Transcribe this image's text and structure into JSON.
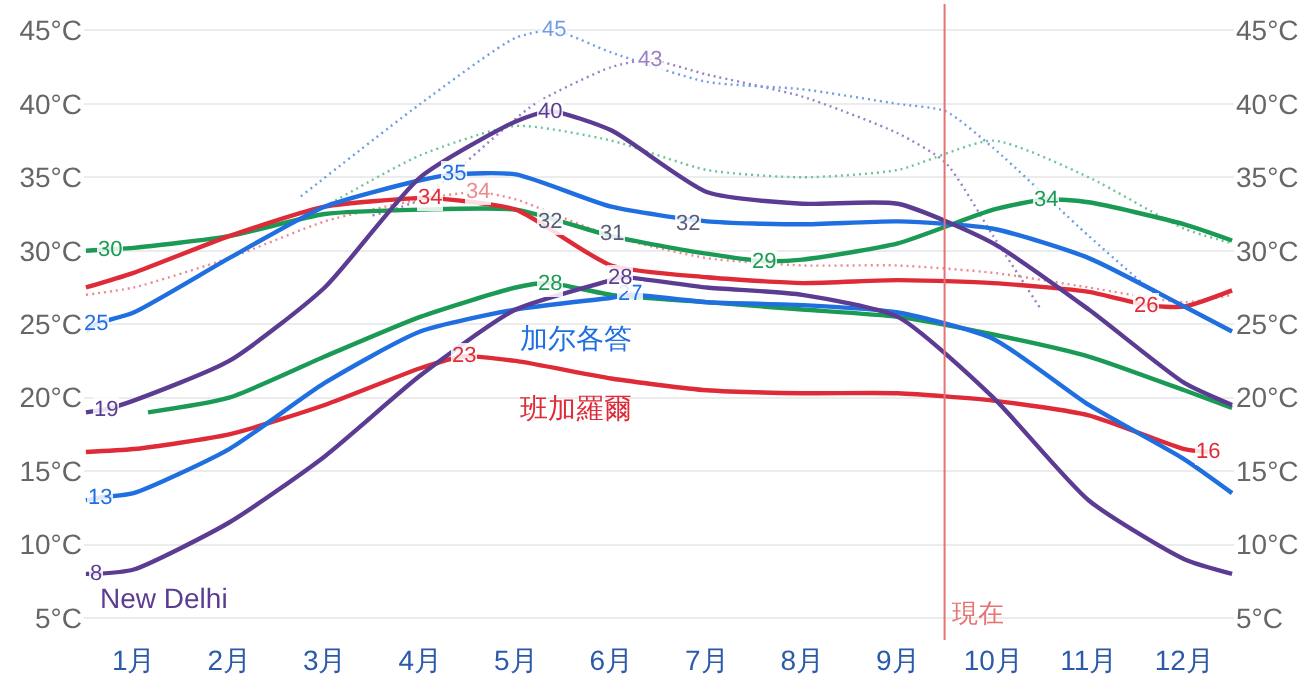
{
  "chart_data": {
    "type": "line",
    "xlim": [
      0.48,
      12.52
    ],
    "xticks": [
      {
        "value": 1,
        "label": "1月"
      },
      {
        "value": 2,
        "label": "2月"
      },
      {
        "value": 3,
        "label": "3月"
      },
      {
        "value": 4,
        "label": "4月"
      },
      {
        "value": 5,
        "label": "5月"
      },
      {
        "value": 6,
        "label": "6月"
      },
      {
        "value": 7,
        "label": "7月"
      },
      {
        "value": 8,
        "label": "8月"
      },
      {
        "value": 9,
        "label": "9月"
      },
      {
        "value": 10,
        "label": "10月"
      },
      {
        "value": 11,
        "label": "11月"
      },
      {
        "value": 12,
        "label": "12月"
      }
    ],
    "ylim": [
      3.5,
      46.8
    ],
    "yticks": [
      {
        "value": 5,
        "label": "5°C"
      },
      {
        "value": 10,
        "label": "10°C"
      },
      {
        "value": 15,
        "label": "15°C"
      },
      {
        "value": 20,
        "label": "20°C"
      },
      {
        "value": 25,
        "label": "25°C"
      },
      {
        "value": 30,
        "label": "30°C"
      },
      {
        "value": 35,
        "label": "35°C"
      },
      {
        "value": 40,
        "label": "40°C"
      },
      {
        "value": 45,
        "label": "45°C"
      }
    ],
    "y2lim": [
      3.5,
      46.8
    ],
    "y2ticks": [
      {
        "value": 5,
        "label": "5°C"
      },
      {
        "value": 10,
        "label": "10°C"
      },
      {
        "value": 15,
        "label": "15°C"
      },
      {
        "value": 20,
        "label": "20°C"
      },
      {
        "value": 25,
        "label": "25°C"
      },
      {
        "value": 30,
        "label": "30°C"
      },
      {
        "value": 35,
        "label": "35°C"
      },
      {
        "value": 40,
        "label": "40°C"
      },
      {
        "value": 45,
        "label": "45°C"
      }
    ],
    "grid": "y",
    "marker": "none",
    "series": [
      {
        "color": "#9b7fc4",
        "line_style": "dotted",
        "x": [
          3.5,
          4,
          5.2,
          6,
          6.4,
          7,
          8,
          9,
          9.5,
          10,
          10.5
        ],
        "values": [
          32.4,
          33.5,
          40,
          42.5,
          43,
          42,
          40.5,
          38,
          36,
          31,
          26
        ],
        "value_labels": [
          null,
          null,
          null,
          null,
          "43",
          null,
          null,
          null,
          null,
          null,
          null
        ]
      },
      {
        "color": "#6f9de6",
        "line_style": "dotted",
        "x": [
          2.75,
          4,
          5,
          5.4,
          6,
          7,
          8,
          9,
          9.5,
          10,
          11,
          11.7
        ],
        "values": [
          33.7,
          40,
          44.5,
          45,
          43.5,
          41.5,
          41,
          40,
          39.5,
          37,
          31,
          27
        ],
        "value_labels": [
          null,
          null,
          null,
          "45",
          null,
          null,
          null,
          null,
          null,
          null,
          null,
          null
        ]
      },
      {
        "color": "#6cc495",
        "line_style": "dotted",
        "x": [
          3,
          4,
          5,
          6,
          7,
          8,
          9,
          10,
          11,
          12,
          12.5
        ],
        "values": [
          33,
          36.5,
          38.5,
          37.5,
          35.5,
          35,
          35.5,
          37.5,
          35,
          31.5,
          30.5
        ]
      },
      {
        "color": "#ec8a90",
        "line_style": "dotted",
        "x": [
          0.5,
          1,
          2,
          3,
          4,
          4.6,
          5,
          6,
          7,
          8,
          9,
          10,
          11,
          12,
          12.5
        ],
        "values": [
          27,
          27.5,
          29.5,
          32,
          33.5,
          34,
          33.5,
          31,
          29.5,
          29,
          29,
          28.5,
          27.5,
          26.5,
          27
        ],
        "value_labels": [
          null,
          null,
          null,
          null,
          null,
          "34",
          null,
          null,
          null,
          null,
          null,
          null,
          null,
          null,
          null
        ]
      },
      {
        "color": "#1a9a55",
        "line_style": "solid",
        "x": [
          0.5,
          0.75,
          1,
          2,
          3,
          4,
          5,
          6,
          7,
          7.6,
          8,
          9,
          10,
          10.55,
          11,
          12,
          12.5
        ],
        "values": [
          30,
          30.1,
          30.2,
          31,
          32.5,
          32.8,
          32.8,
          31,
          29.8,
          29.3,
          29.4,
          30.5,
          32.8,
          33.5,
          33.3,
          31.8,
          30.7
        ],
        "value_labels": [
          null,
          "30",
          null,
          null,
          null,
          null,
          null,
          null,
          null,
          "29",
          null,
          null,
          null,
          "34",
          null,
          null,
          null
        ]
      },
      {
        "color": "#1a9a55",
        "line_style": "solid",
        "x": [
          1.15,
          2,
          3,
          4,
          5,
          5.35,
          6,
          7,
          8,
          9,
          10,
          11,
          12,
          12.5
        ],
        "values": [
          19,
          20,
          22.8,
          25.5,
          27.5,
          27.8,
          27,
          26.5,
          26,
          25.5,
          24.3,
          22.8,
          20.5,
          19.3
        ],
        "value_labels": [
          null,
          null,
          null,
          null,
          null,
          "28",
          null,
          null,
          null,
          null,
          null,
          null,
          null,
          null
        ]
      },
      {
        "color": "#de2b37",
        "line_style": "solid",
        "x": [
          0.5,
          1,
          2,
          3,
          4,
          4.1,
          5,
          6,
          7,
          8,
          9,
          10,
          11,
          11.6,
          12,
          12.5
        ],
        "values": [
          27.5,
          28.5,
          31,
          33,
          33.6,
          33.6,
          32.8,
          29,
          28.2,
          27.8,
          28,
          27.8,
          27.2,
          26.3,
          26.2,
          27.3
        ],
        "value_labels": [
          null,
          null,
          null,
          null,
          null,
          "34",
          null,
          null,
          null,
          null,
          null,
          null,
          null,
          "26",
          null,
          null
        ]
      },
      {
        "name": "班加羅爾",
        "color": "#de2b37",
        "line_style": "solid",
        "x": [
          0.5,
          1,
          2,
          3,
          4,
          4.45,
          5,
          6,
          7,
          8,
          9,
          10,
          11,
          12,
          12.25
        ],
        "values": [
          16.3,
          16.5,
          17.5,
          19.5,
          22,
          22.8,
          22.5,
          21.3,
          20.5,
          20.3,
          20.3,
          19.8,
          18.8,
          16.5,
          16.3
        ],
        "value_labels": [
          null,
          null,
          null,
          null,
          null,
          "23",
          null,
          null,
          null,
          null,
          null,
          null,
          null,
          null,
          "16"
        ]
      },
      {
        "color": "#1f6fe0",
        "line_style": "solid",
        "x": [
          0.5,
          0.6,
          1,
          2,
          3,
          4,
          4.35,
          5,
          6,
          7,
          8,
          9,
          10,
          11,
          12,
          12.5
        ],
        "values": [
          24.5,
          25,
          25.8,
          29.5,
          33,
          34.8,
          35.2,
          35.2,
          33,
          32,
          31.8,
          32,
          31.5,
          29.5,
          26.2,
          24.5
        ],
        "value_labels": [
          null,
          "25",
          null,
          null,
          null,
          null,
          "35",
          null,
          null,
          null,
          null,
          null,
          null,
          null,
          null,
          null
        ]
      },
      {
        "name": "加尔各答",
        "color": "#1f6fe0",
        "line_style": "solid",
        "x": [
          0.5,
          0.65,
          1,
          2,
          3,
          4,
          5,
          6,
          6.2,
          7,
          8,
          9,
          10,
          11,
          12,
          12.5
        ],
        "values": [
          13,
          13.2,
          13.5,
          16.5,
          21,
          24.5,
          26,
          26.8,
          27,
          26.5,
          26.3,
          25.8,
          24,
          19.5,
          15.8,
          13.5
        ],
        "value_labels": [
          null,
          "13",
          null,
          null,
          null,
          null,
          null,
          null,
          "27",
          null,
          null,
          null,
          null,
          null,
          null,
          null
        ]
      },
      {
        "color": "#5c3c92",
        "line_style": "solid",
        "x": [
          0.5,
          0.7,
          1,
          2,
          3,
          4,
          5,
          5.36,
          6,
          7,
          8,
          9,
          10,
          11,
          12,
          12.5
        ],
        "values": [
          19,
          19.2,
          19.8,
          22.5,
          27.5,
          35,
          38.8,
          39.5,
          38.2,
          34,
          33.2,
          33.2,
          30.5,
          26,
          21,
          19.5
        ],
        "value_labels": [
          null,
          "19",
          null,
          null,
          null,
          null,
          null,
          "40",
          null,
          null,
          null,
          null,
          null,
          null,
          null,
          null
        ]
      },
      {
        "name": "New Delhi",
        "color": "#5c3c92",
        "line_style": "solid",
        "x": [
          0.5,
          0.6,
          1,
          2,
          3,
          4,
          5,
          6,
          6.1,
          7,
          8,
          9,
          10,
          11,
          12,
          12.5
        ],
        "values": [
          8,
          8,
          8.3,
          11.5,
          16,
          21.5,
          26,
          28,
          28.2,
          27.5,
          27,
          25.5,
          20,
          13,
          9,
          8
        ],
        "value_labels": [
          null,
          "8",
          null,
          null,
          null,
          null,
          null,
          null,
          "28",
          null,
          null,
          null,
          null,
          null,
          null,
          null
        ]
      }
    ],
    "annotations": [
      {
        "text": "32",
        "x": 5.35,
        "y": 31.9
      },
      {
        "text": "31",
        "x": 6.0,
        "y": 31.1
      },
      {
        "text": "32",
        "x": 6.8,
        "y": 31.8
      }
    ],
    "ref_lines": [
      {
        "axis": "x",
        "value": 9.49,
        "label": "現在",
        "color": "#e57373"
      }
    ]
  }
}
